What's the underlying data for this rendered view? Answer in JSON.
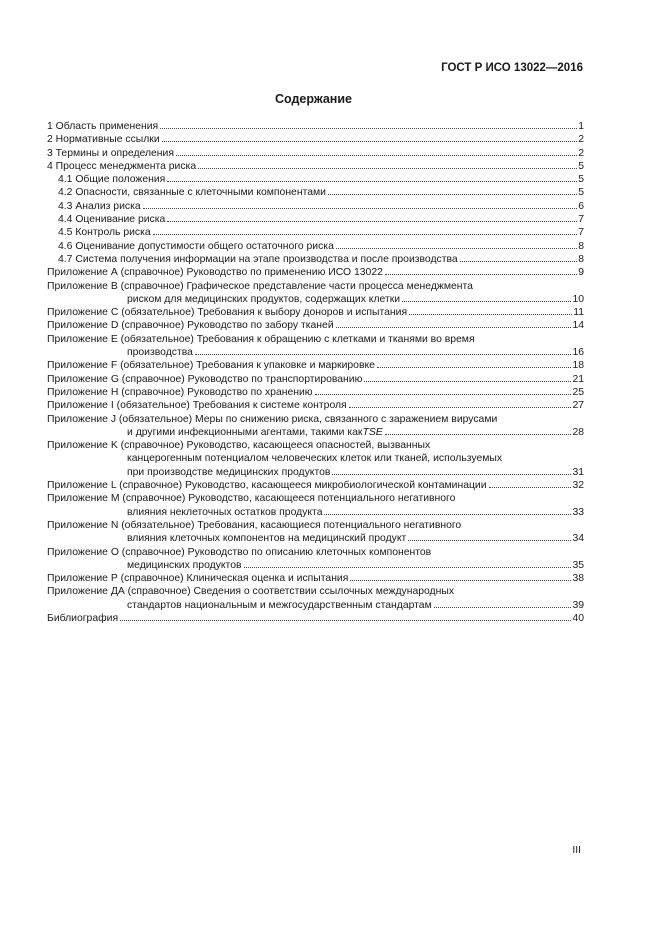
{
  "header": {
    "standard": "ГОСТ Р ИСО 13022—2016"
  },
  "title": "Содержание",
  "toc": [
    {
      "level": 0,
      "lines": [
        "1 Область применения"
      ],
      "page": "1"
    },
    {
      "level": 0,
      "lines": [
        "2 Нормативные ссылки"
      ],
      "page": "2"
    },
    {
      "level": 0,
      "lines": [
        "3 Термины и определения"
      ],
      "page": "2"
    },
    {
      "level": 0,
      "lines": [
        "4 Процесс менеджмента риска"
      ],
      "page": "5"
    },
    {
      "level": 1,
      "lines": [
        "4.1 Общие положения"
      ],
      "page": "5"
    },
    {
      "level": 1,
      "lines": [
        "4.2 Опасности, связанные с клеточными компонентами"
      ],
      "page": "5"
    },
    {
      "level": 1,
      "lines": [
        "4.3 Анализ риска"
      ],
      "page": "6"
    },
    {
      "level": 1,
      "lines": [
        "4.4 Оценивание риска"
      ],
      "page": "7"
    },
    {
      "level": 1,
      "lines": [
        "4.5 Контроль риска"
      ],
      "page": "7"
    },
    {
      "level": 1,
      "lines": [
        "4.6 Оценивание допустимости общего остаточного риска"
      ],
      "page": "8"
    },
    {
      "level": 1,
      "lines": [
        "4.7 Система получения информации на этапе производства и после производства"
      ],
      "page": "8"
    },
    {
      "level": 0,
      "lines": [
        "Приложение А (справочное) Руководство по применению ИСО 13022"
      ],
      "page": "9"
    },
    {
      "level": 0,
      "lines": [
        "Приложение В (справочное) Графическое представление части процесса менеджмента",
        "риском для медицинских продуктов, содержащих клетки"
      ],
      "page": "10"
    },
    {
      "level": 0,
      "lines": [
        "Приложение С (обязательное) Требования к выбору доноров и испытания"
      ],
      "page": "11"
    },
    {
      "level": 0,
      "lines": [
        "Приложение D (справочное) Руководство по забору тканей"
      ],
      "page": "14"
    },
    {
      "level": 0,
      "lines": [
        "Приложение Е (обязательное) Требования к обращению с клетками и тканями во время",
        "производства"
      ],
      "page": "16"
    },
    {
      "level": 0,
      "lines": [
        "Приложение F (обязательное) Требования к упаковке и маркировке"
      ],
      "page": "18"
    },
    {
      "level": 0,
      "lines": [
        "Приложение G (справочное) Руководство по транспортированию"
      ],
      "page": "21"
    },
    {
      "level": 0,
      "lines": [
        "Приложение Н (справочное) Руководство по хранению"
      ],
      "page": "25"
    },
    {
      "level": 0,
      "lines": [
        "Приложение I (обязательное) Требования к системе контроля"
      ],
      "page": "27"
    },
    {
      "level": 0,
      "lines": [
        "Приложение J (обязательное) Меры по снижению риска, связанного с заражением вирусами",
        "и другими инфекционными агентами, такими как "
      ],
      "italic_tail": "TSE",
      "page": "28"
    },
    {
      "level": 0,
      "lines": [
        "Приложение K (справочное) Руководство, касающееся опасностей, вызванных",
        "канцерогенным потенциалом человеческих клеток или тканей, используемых",
        "при производстве медицинских продуктов"
      ],
      "page": "31"
    },
    {
      "level": 0,
      "lines": [
        "Приложение L (справочное) Руководство, касающееся микробиологической контаминации"
      ],
      "page": "32"
    },
    {
      "level": 0,
      "lines": [
        "Приложение М (справочное) Руководство, касающееся потенциального негативного",
        "влияния неклеточных остатков продукта"
      ],
      "page": "33"
    },
    {
      "level": 0,
      "lines": [
        "Приложение N (обязательное) Требования, касающиеся потенциального негативного",
        "влияния клеточных компонентов на медицинский продукт"
      ],
      "page": "34"
    },
    {
      "level": 0,
      "lines": [
        "Приложение О (справочное) Руководство по описанию клеточных компонентов",
        "медицинских продуктов"
      ],
      "page": "35"
    },
    {
      "level": 0,
      "lines": [
        "Приложение Р (справочное) Клиническая оценка и испытания"
      ],
      "page": "38"
    },
    {
      "level": 0,
      "lines": [
        "Приложение ДА (справочное) Сведения о соответствии ссылочных международных",
        "стандартов национальным и межгосударственным стандартам"
      ],
      "page": "39"
    },
    {
      "level": 0,
      "lines": [
        "Библиография"
      ],
      "page": "40"
    }
  ],
  "footer": {
    "page_number": "III"
  }
}
